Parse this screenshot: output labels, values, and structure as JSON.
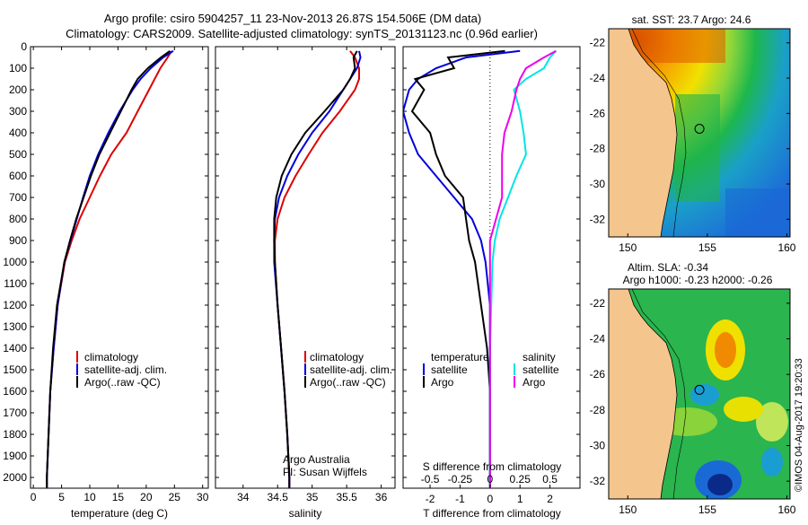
{
  "title_line1": "Argo profile: csiro 5904257_11 23-Nov-2013 26.87S 154.506E (DM data)",
  "title_line2": "Climatology: CARS2009. Satellite-adjusted climatology: synTS_20131123.nc (0.96d earlier)",
  "side_text": "©IMOS 04-Aug-2017 19:20:33",
  "colors": {
    "climatology": "#dd0000",
    "satellite": "#0000dd",
    "argo": "#000000",
    "sal_satellite": "#00e5e5",
    "sal_argo": "#ee00ee",
    "land": "#f5c58e"
  },
  "chart_data": [
    {
      "type": "line",
      "id": "temperature",
      "xlabel": "temperature (deg C)",
      "ylim": [
        0,
        2050
      ],
      "xlim": [
        -0.5,
        31
      ],
      "xticks": [
        "0",
        "5",
        "10",
        "15",
        "20",
        "25",
        "30"
      ],
      "yticks": [
        "0",
        "100",
        "200",
        "300",
        "400",
        "500",
        "600",
        "700",
        "800",
        "900",
        "1000",
        "1100",
        "1200",
        "1300",
        "1400",
        "1500",
        "1600",
        "1700",
        "1800",
        "1900",
        "2000"
      ],
      "legend": [
        "climatology",
        "satellite-adj. clim.",
        "Argo(..raw -QC)"
      ],
      "depth": [
        20,
        50,
        100,
        150,
        200,
        300,
        400,
        500,
        600,
        700,
        800,
        900,
        1000,
        1200,
        1400,
        1600,
        1800,
        2000,
        2050
      ],
      "series": [
        {
          "name": "climatology",
          "values": [
            24.5,
            23.8,
            22.5,
            21.5,
            20.5,
            18.5,
            16.5,
            13.8,
            11.8,
            10.0,
            8.2,
            6.8,
            5.6,
            4.3,
            3.6,
            3.0,
            2.7,
            2.4,
            2.4
          ]
        },
        {
          "name": "satellite-adj. clim.",
          "values": [
            24.8,
            23.0,
            20.8,
            19.0,
            17.6,
            15.3,
            13.3,
            11.5,
            10.0,
            8.8,
            7.7,
            6.6,
            5.5,
            4.3,
            3.6,
            3.0,
            2.7,
            2.4,
            2.4
          ]
        },
        {
          "name": "Argo(..raw -QC)",
          "values": [
            24.2,
            22.6,
            20.3,
            18.5,
            17.4,
            15.5,
            13.6,
            11.7,
            10.2,
            8.9,
            7.6,
            6.5,
            5.5,
            4.2,
            3.5,
            3.0,
            2.7,
            2.4,
            2.4
          ]
        }
      ]
    },
    {
      "type": "line",
      "id": "salinity",
      "xlabel": "salinity",
      "ylim": [
        0,
        2050
      ],
      "xlim": [
        33.6,
        36.2
      ],
      "xticks": [
        "34",
        "34.5",
        "35",
        "35.5",
        "36"
      ],
      "legend": [
        "climatology",
        "satellite-adj. clim.",
        "Argo(..raw -QC)"
      ],
      "credit": [
        "Argo Australia",
        "PI: Susan Wijffels"
      ],
      "depth": [
        20,
        50,
        100,
        150,
        200,
        300,
        400,
        500,
        600,
        700,
        800,
        900,
        1000,
        1200,
        1400,
        1600,
        1800,
        2000,
        2050
      ],
      "series": [
        {
          "name": "climatology",
          "values": [
            35.55,
            35.62,
            35.68,
            35.68,
            35.62,
            35.4,
            35.15,
            34.95,
            34.76,
            34.6,
            34.5,
            34.46,
            34.46,
            34.5,
            34.55,
            34.6,
            34.64,
            34.67,
            34.67
          ]
        },
        {
          "name": "satellite-adj. clim.",
          "values": [
            35.68,
            35.7,
            35.65,
            35.55,
            35.45,
            35.25,
            35.0,
            34.8,
            34.64,
            34.52,
            34.46,
            34.45,
            34.45,
            34.5,
            34.55,
            34.6,
            34.64,
            34.67,
            34.67
          ]
        },
        {
          "name": "Argo(..raw -QC)",
          "values": [
            35.65,
            35.6,
            35.62,
            35.55,
            35.45,
            35.18,
            34.9,
            34.7,
            34.56,
            34.48,
            34.45,
            34.45,
            34.46,
            34.5,
            34.55,
            34.6,
            34.64,
            34.67,
            34.67
          ]
        }
      ]
    },
    {
      "type": "line",
      "id": "difference",
      "xlabel": "T difference from climatology",
      "toplabel": "S difference from climatology",
      "ylim": [
        0,
        2050
      ],
      "xlim": [
        -2.9,
        3.0
      ],
      "xticks": [
        "-2",
        "-1",
        "0",
        "1",
        "2"
      ],
      "sticks": [
        "-0.5",
        "-0.25",
        "0",
        "0.25",
        "0.5"
      ],
      "legend_titles": [
        "temperature",
        "salinity"
      ],
      "legend_t": [
        "satellite",
        "Argo"
      ],
      "legend_s": [
        "satellite",
        "Argo"
      ],
      "depth": [
        20,
        50,
        100,
        150,
        200,
        300,
        400,
        500,
        600,
        700,
        800,
        900,
        1000,
        1200,
        1400,
        1600,
        1800,
        1900,
        2050
      ],
      "series": [
        {
          "name": "temperature satellite",
          "values": [
            1.0,
            -0.8,
            -1.8,
            -2.4,
            -2.7,
            -2.9,
            -2.7,
            -2.4,
            -1.8,
            -1.2,
            -0.6,
            -0.3,
            -0.15,
            0.0,
            0.0,
            0.0,
            0.0,
            0.0,
            0.0
          ]
        },
        {
          "name": "temperature Argo",
          "values": [
            0.5,
            -1.4,
            -1.2,
            -2.5,
            -2.2,
            -2.6,
            -2.0,
            -1.8,
            -1.5,
            -0.9,
            -0.8,
            -0.7,
            -0.5,
            -0.3,
            -0.1,
            0.0,
            0.0,
            0.0,
            0.0
          ]
        },
        {
          "name": "salinity satellite",
          "values": [
            0.55,
            0.5,
            0.45,
            0.3,
            0.2,
            0.25,
            0.28,
            0.3,
            0.22,
            0.15,
            0.08,
            0.04,
            0.02,
            0.01,
            0.0,
            0.0,
            0.0,
            0.0,
            0.0
          ]
        },
        {
          "name": "salinity Argo",
          "values": [
            0.55,
            0.45,
            0.3,
            0.25,
            0.22,
            0.18,
            0.12,
            0.1,
            0.1,
            0.1,
            0.05,
            0.0,
            0.0,
            0.0,
            0.0,
            0.0,
            0.0,
            0.0,
            0.0
          ]
        }
      ]
    },
    {
      "type": "heatmap",
      "id": "sst-map",
      "title": "sat. SST: 23.7  Argo: 24.6",
      "xticks": [
        "150",
        "155",
        "160"
      ],
      "yticks": [
        "-22",
        "-24",
        "-26",
        "-28",
        "-30",
        "-32"
      ],
      "xlim": [
        148.8,
        160.2
      ],
      "ylim": [
        -33.0,
        -21.2
      ],
      "argo_position": [
        154.506,
        -26.87
      ]
    },
    {
      "type": "heatmap",
      "id": "sla-map",
      "title_line1": "Altim. SLA: -0.34",
      "title_line2": "Argo h1000: -0.23  h2000: -0.26",
      "xticks": [
        "150",
        "155",
        "160"
      ],
      "yticks": [
        "-22",
        "-24",
        "-26",
        "-28",
        "-30",
        "-32"
      ],
      "xlim": [
        148.8,
        160.2
      ],
      "ylim": [
        -33.0,
        -21.2
      ],
      "argo_position": [
        154.506,
        -26.87
      ]
    }
  ]
}
